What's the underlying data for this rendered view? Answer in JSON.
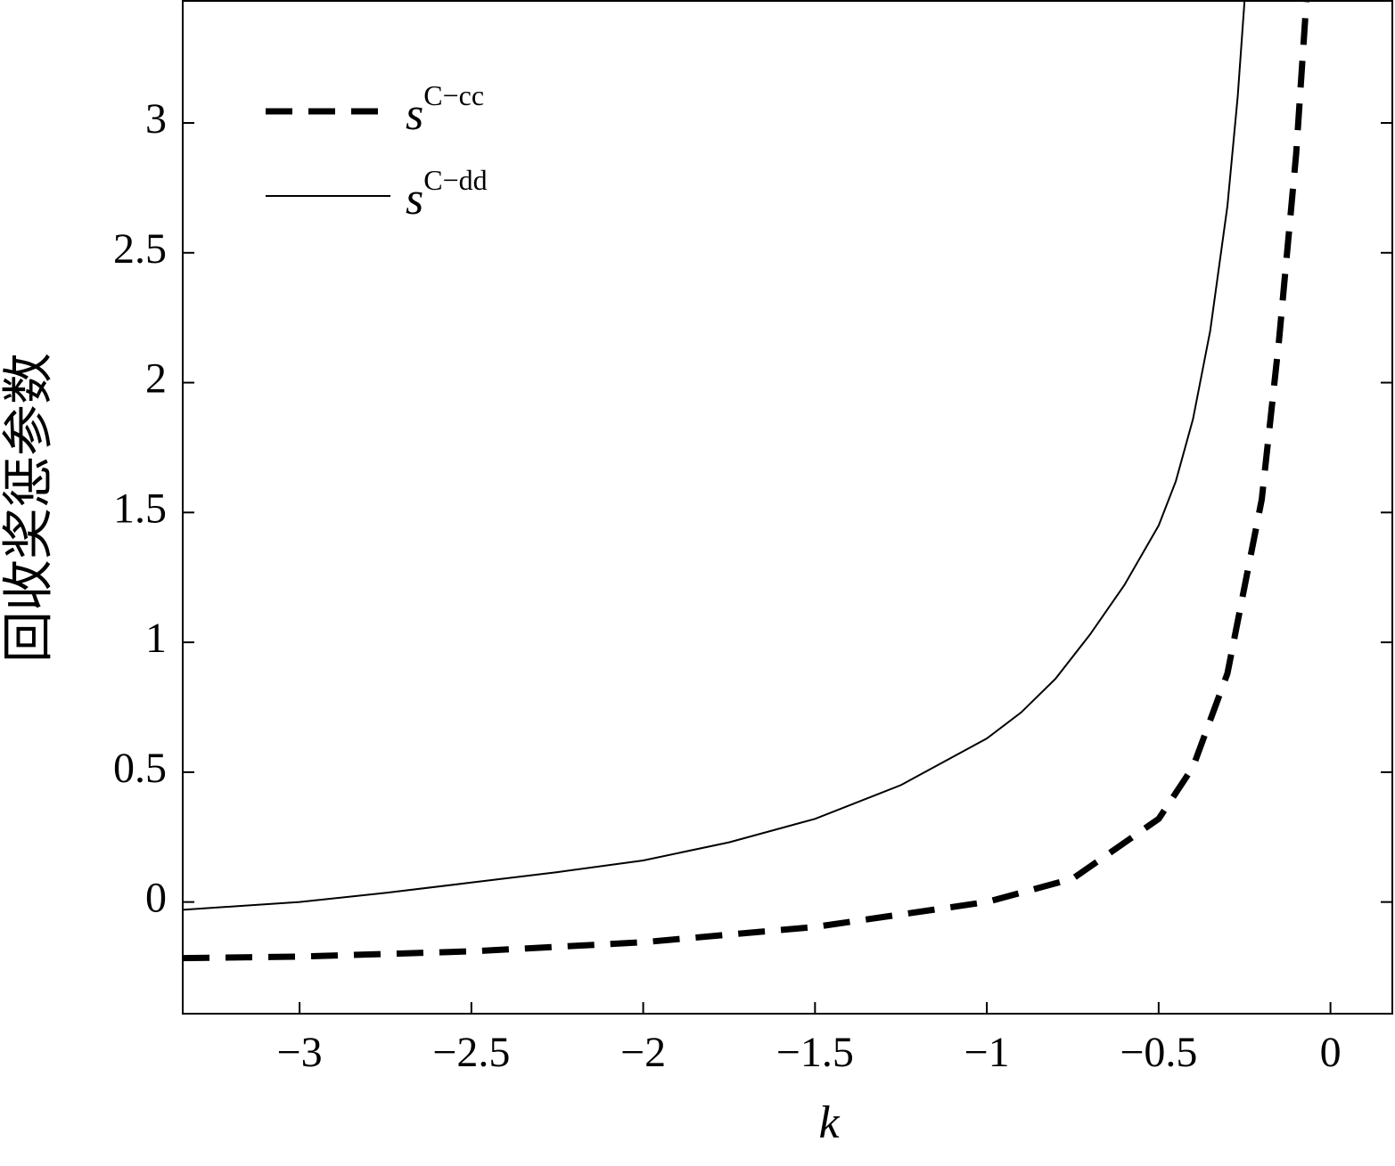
{
  "chart_data": {
    "type": "line",
    "x_label": "k",
    "y_label": "回收奖惩参数",
    "xlim": [
      -3.34,
      0.18
    ],
    "ylim": [
      -0.43,
      3.47
    ],
    "xticks": [
      {
        "value": -3,
        "label": "−3"
      },
      {
        "value": -2.5,
        "label": "−2.5"
      },
      {
        "value": -2,
        "label": "−2"
      },
      {
        "value": -1.5,
        "label": "−1.5"
      },
      {
        "value": -1,
        "label": "−1"
      },
      {
        "value": -0.5,
        "label": "−0.5"
      },
      0
    ],
    "yticks": [
      0,
      0.5,
      1,
      1.5,
      2,
      2.5,
      3
    ],
    "legend": "upper left",
    "series": [
      {
        "name": {
          "base": "s",
          "sup": "C−cc"
        },
        "color": "#000000",
        "style": "dashed",
        "x": [
          -3.34,
          -3.0,
          -2.5,
          -2.0,
          -1.5,
          -1.0,
          -0.75,
          -0.5,
          -0.4,
          -0.3,
          -0.2,
          -0.15,
          -0.1,
          -0.07
        ],
        "values": [
          -0.216,
          -0.21,
          -0.19,
          -0.155,
          -0.096,
          0.0,
          0.09,
          0.32,
          0.52,
          0.88,
          1.55,
          2.16,
          2.88,
          3.47
        ]
      },
      {
        "name": {
          "base": "s",
          "sup": "C−dd"
        },
        "color": "#000000",
        "style": "solid",
        "x": [
          -3.34,
          -3.0,
          -2.75,
          -2.5,
          -2.25,
          -2.0,
          -1.75,
          -1.5,
          -1.25,
          -1.0,
          -0.9,
          -0.8,
          -0.7,
          -0.6,
          -0.5,
          -0.45,
          -0.4,
          -0.35,
          -0.3,
          -0.27,
          -0.25
        ],
        "values": [
          -0.03,
          0.0,
          0.035,
          0.075,
          0.115,
          0.16,
          0.23,
          0.32,
          0.45,
          0.63,
          0.73,
          0.86,
          1.03,
          1.22,
          1.45,
          1.62,
          1.86,
          2.2,
          2.68,
          3.1,
          3.47
        ]
      }
    ]
  }
}
